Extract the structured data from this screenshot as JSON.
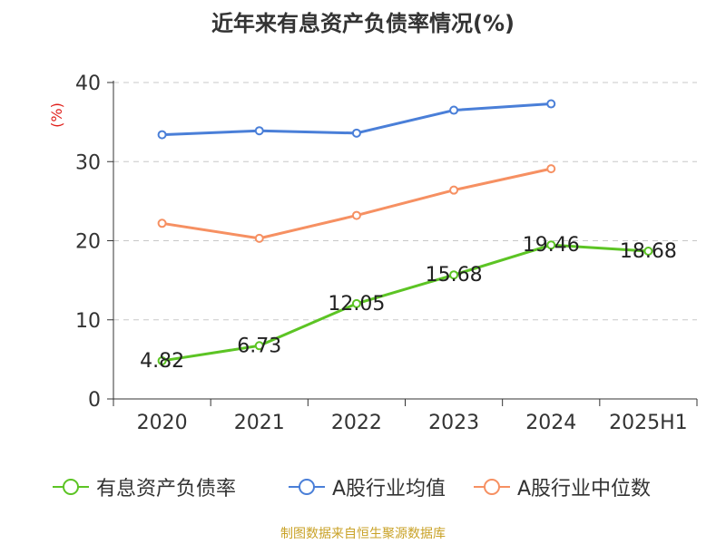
{
  "chart_data": {
    "type": "line",
    "title": "近年来有息资产负债率情况(%)",
    "ylabel": "(%)",
    "xlabel": "",
    "ylim": [
      0,
      40
    ],
    "yticks": [
      "0",
      "10",
      "20",
      "30",
      "40"
    ],
    "categories": [
      "2020",
      "2021",
      "2022",
      "2023",
      "2024",
      "2025H1"
    ],
    "grid": true,
    "legend_position": "bottom",
    "series": [
      {
        "name": "有息资产负债率",
        "color": "#5cc424",
        "values": [
          4.82,
          6.73,
          12.05,
          15.68,
          19.46,
          18.68
        ],
        "labels": [
          "4.82",
          "6.73",
          "12.05",
          "15.68",
          "19.46",
          "18.68"
        ]
      },
      {
        "name": "A股行业均值",
        "color": "#4a7fd8",
        "values": [
          33.4,
          33.9,
          33.6,
          36.5,
          37.3,
          null
        ]
      },
      {
        "name": "A股行业中位数",
        "color": "#f69062",
        "values": [
          22.2,
          20.3,
          23.2,
          26.4,
          29.1,
          null
        ]
      }
    ]
  },
  "source": "制图数据来自恒生聚源数据库"
}
